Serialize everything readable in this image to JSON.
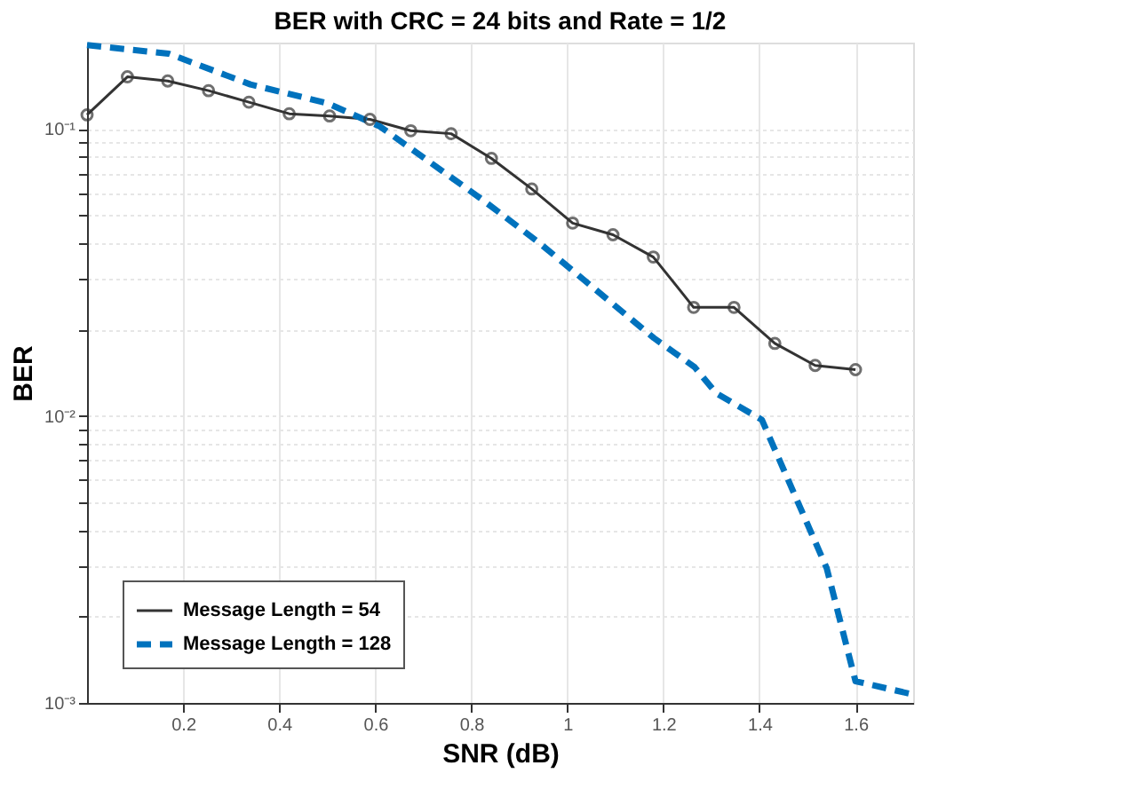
{
  "chart_data": {
    "type": "line",
    "title": "BER with CRC = 24 bits and Rate = 1/2",
    "xlabel": "SNR (dB)",
    "ylabel": "BER",
    "log": "y",
    "grid": true,
    "legend": "bottom left",
    "xlim": [
      0,
      1.72
    ],
    "ylim": [
      0.001,
      0.2
    ],
    "xticks": [
      0.2,
      0.4,
      0.6,
      0.8,
      1,
      1.2,
      1.4,
      1.6
    ],
    "yticks": [
      {
        "value": 0.001,
        "label": "10⁻³"
      },
      {
        "value": 0.002,
        "label": null
      },
      {
        "value": 0.003,
        "label": null
      },
      {
        "value": 0.004,
        "label": null
      },
      {
        "value": 0.005,
        "label": null
      },
      {
        "value": 0.006,
        "label": null
      },
      {
        "value": 0.007,
        "label": null
      },
      {
        "value": 0.008,
        "label": null
      },
      {
        "value": 0.009,
        "label": null
      },
      {
        "value": 0.01,
        "label": "10⁻²"
      },
      {
        "value": 0.02,
        "label": null
      },
      {
        "value": 0.03,
        "label": null
      },
      {
        "value": 0.04,
        "label": null
      },
      {
        "value": 0.05,
        "label": null
      },
      {
        "value": 0.06,
        "label": null
      },
      {
        "value": 0.07,
        "label": null
      },
      {
        "value": 0.08,
        "label": null
      },
      {
        "value": 0.09,
        "label": null
      },
      {
        "value": 0.1,
        "label": "10⁻¹"
      }
    ],
    "series": [
      {
        "name": "Message Length = 54",
        "color": "#333333",
        "marker": "circle",
        "line_style": "solid",
        "x": [
          0,
          0.084,
          0.168,
          0.253,
          0.337,
          0.421,
          0.505,
          0.589,
          0.674,
          0.758,
          0.842,
          0.926,
          1.011,
          1.095,
          1.179,
          1.263,
          1.347,
          1.432,
          1.516,
          1.6
        ],
        "values": [
          0.112,
          0.152,
          0.147,
          0.136,
          0.124,
          0.113,
          0.111,
          0.108,
          0.0986,
          0.0963,
          0.079,
          0.0618,
          0.047,
          0.0428,
          0.0358,
          0.0239,
          0.0239,
          0.0179,
          0.015,
          0.0145
        ]
      },
      {
        "name": "Message Length = 128",
        "color": "#0072bd",
        "marker": "none",
        "line_style": "dashed",
        "x": [
          0,
          0.17,
          0.34,
          0.5,
          0.61,
          0.82,
          0.94,
          1.18,
          1.265,
          1.31,
          1.405,
          1.54,
          1.6,
          1.72
        ],
        "values": [
          0.196,
          0.183,
          0.143,
          0.123,
          0.102,
          0.0572,
          0.0403,
          0.0187,
          0.0148,
          0.012,
          0.0097,
          0.00295,
          0.00119,
          0.00107
        ]
      }
    ]
  }
}
